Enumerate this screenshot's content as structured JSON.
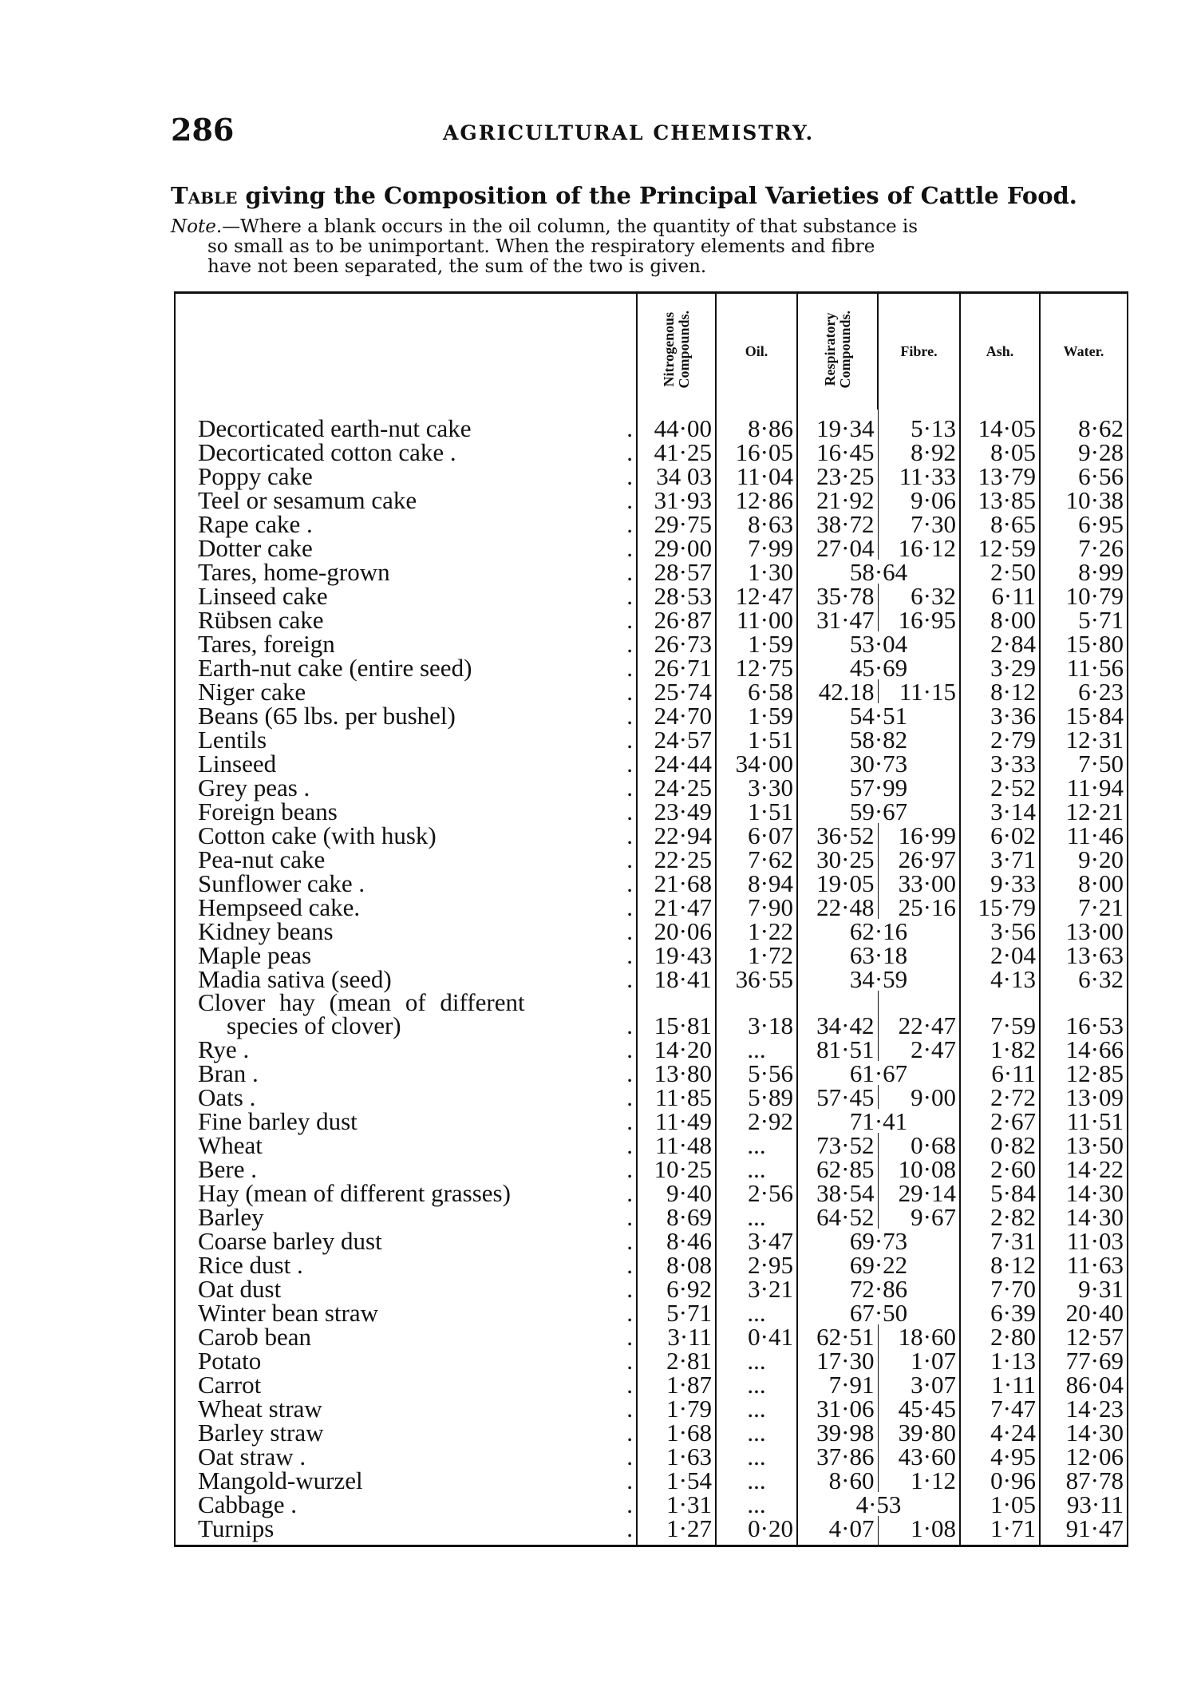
{
  "page_number": "286",
  "running_head": "AGRICULTURAL CHEMISTRY.",
  "title_lead": "Table",
  "title_rest": " giving the Composition of the Principal Varieties of Cattle Food.",
  "note_label": "Note.",
  "note_line1": "—Where a blank occurs in the oil column, the quantity of that substance is",
  "note_line2": "so small as to be unimportant.  When the respiratory elements and fibre",
  "note_line3": "have not been separated, the sum of the two is given.",
  "columns": [
    "Nitrogenous Compounds.",
    "Oil.",
    "Respiratory Compounds.",
    "Fibre.",
    "Ash.",
    "Water."
  ],
  "rows": [
    {
      "name": "Decorticated earth-nut cake",
      "v": [
        "44·00",
        "8·86",
        "19·34",
        "5·13",
        "14·05",
        "8·62"
      ]
    },
    {
      "name": "Decorticated cotton cake .",
      "v": [
        "41·25",
        "16·05",
        "16·45",
        "8·92",
        "8·05",
        "9·28"
      ]
    },
    {
      "name": "Poppy cake",
      "v": [
        "34 03",
        "11·04",
        "23·25",
        "11·33",
        "13·79",
        "6·56"
      ]
    },
    {
      "name": "Teel or sesamum cake",
      "v": [
        "31·93",
        "12·86",
        "21·92",
        "9·06",
        "13·85",
        "10·38"
      ]
    },
    {
      "name": "Rape cake .",
      "v": [
        "29·75",
        "8·63",
        "38·72",
        "7·30",
        "8·65",
        "6·95"
      ]
    },
    {
      "name": "Dotter cake",
      "v": [
        "29·00",
        "7·99",
        "27·04",
        "16·12",
        "12·59",
        "7·26"
      ]
    },
    {
      "name": "Tares, home-grown",
      "v": [
        "28·57",
        "1·30",
        "58·64",
        null,
        "2·50",
        "8·99"
      ]
    },
    {
      "name": "Linseed cake",
      "v": [
        "28·53",
        "12·47",
        "35·78",
        "6·32",
        "6·11",
        "10·79"
      ]
    },
    {
      "name": "Rübsen cake",
      "v": [
        "26·87",
        "11·00",
        "31·47",
        "16·95",
        "8·00",
        "5·71"
      ]
    },
    {
      "name": "Tares, foreign",
      "v": [
        "26·73",
        "1·59",
        "53·04",
        null,
        "2·84",
        "15·80"
      ]
    },
    {
      "name": "Earth-nut cake (entire seed)",
      "v": [
        "26·71",
        "12·75",
        "45·69",
        null,
        "3·29",
        "11·56"
      ]
    },
    {
      "name": "Niger cake",
      "v": [
        "25·74",
        "6·58",
        "42.18",
        "11·15",
        "8·12",
        "6·23"
      ]
    },
    {
      "name": "Beans (65 lbs. per bushel)",
      "v": [
        "24·70",
        "1·59",
        "54·51",
        null,
        "3·36",
        "15·84"
      ]
    },
    {
      "name": "Lentils",
      "v": [
        "24·57",
        "1·51",
        "58·82",
        null,
        "2·79",
        "12·31"
      ]
    },
    {
      "name": "Linseed",
      "v": [
        "24·44",
        "34·00",
        "30·73",
        null,
        "3·33",
        "7·50"
      ]
    },
    {
      "name": "Grey peas .",
      "v": [
        "24·25",
        "3·30",
        "57·99",
        null,
        "2·52",
        "11·94"
      ]
    },
    {
      "name": "Foreign beans",
      "v": [
        "23·49",
        "1·51",
        "59·67",
        null,
        "3·14",
        "12·21"
      ]
    },
    {
      "name": "Cotton cake (with husk)",
      "v": [
        "22·94",
        "6·07",
        "36·52",
        "16·99",
        "6·02",
        "11·46"
      ]
    },
    {
      "name": "Pea-nut cake",
      "v": [
        "22·25",
        "7·62",
        "30·25",
        "26·97",
        "3·71",
        "9·20"
      ]
    },
    {
      "name": "Sunflower cake .",
      "v": [
        "21·68",
        "8·94",
        "19·05",
        "33·00",
        "9·33",
        "8·00"
      ]
    },
    {
      "name": "Hempseed cake.",
      "v": [
        "21·47",
        "7·90",
        "22·48",
        "25·16",
        "15·79",
        "7·21"
      ]
    },
    {
      "name": "Kidney beans",
      "v": [
        "20·06",
        "1·22",
        "62·16",
        null,
        "3·56",
        "13·00"
      ]
    },
    {
      "name": "Maple peas",
      "v": [
        "19·43",
        "1·72",
        "63·18",
        null,
        "2·04",
        "13·63"
      ]
    },
    {
      "name": "Madia sativa (seed)",
      "v": [
        "18·41",
        "36·55",
        "34·59",
        null,
        "4·13",
        "6·32"
      ]
    },
    {
      "name": "Clover  hay  (mean  of  different",
      "name2": "species of clover)",
      "v": [
        "15·81",
        "3·18",
        "34·42",
        "22·47",
        "7·59",
        "16·53"
      ]
    },
    {
      "name": "Rye .",
      "v": [
        "14·20",
        "...",
        "81·51",
        "2·47",
        "1·82",
        "14·66"
      ]
    },
    {
      "name": "Bran .",
      "v": [
        "13·80",
        "5·56",
        "61·67",
        null,
        "6·11",
        "12·85"
      ]
    },
    {
      "name": "Oats .",
      "v": [
        "11·85",
        "5·89",
        "57·45",
        "9·00",
        "2·72",
        "13·09"
      ]
    },
    {
      "name": "Fine barley dust",
      "v": [
        "11·49",
        "2·92",
        "71·41",
        null,
        "2·67",
        "11·51"
      ]
    },
    {
      "name": "Wheat",
      "v": [
        "11·48",
        "...",
        "73·52",
        "0·68",
        "0·82",
        "13·50"
      ]
    },
    {
      "name": "Bere .",
      "v": [
        "10·25",
        "...",
        "62·85",
        "10·08",
        "2·60",
        "14·22"
      ]
    },
    {
      "name": "Hay (mean of different grasses)",
      "v": [
        "9·40",
        "2·56",
        "38·54",
        "29·14",
        "5·84",
        "14·30"
      ]
    },
    {
      "name": "Barley",
      "v": [
        "8·69",
        "...",
        "64·52",
        "9·67",
        "2·82",
        "14·30"
      ]
    },
    {
      "name": "Coarse barley dust",
      "v": [
        "8·46",
        "3·47",
        "69·73",
        null,
        "7·31",
        "11·03"
      ]
    },
    {
      "name": "Rice dust .",
      "v": [
        "8·08",
        "2·95",
        "69·22",
        null,
        "8·12",
        "11·63"
      ]
    },
    {
      "name": "Oat dust",
      "v": [
        "6·92",
        "3·21",
        "72·86",
        null,
        "7·70",
        "9·31"
      ]
    },
    {
      "name": "Winter bean straw",
      "v": [
        "5·71",
        "...",
        "67·50",
        null,
        "6·39",
        "20·40"
      ]
    },
    {
      "name": "Carob bean",
      "v": [
        "3·11",
        "0·41",
        "62·51",
        "18·60",
        "2·80",
        "12·57"
      ]
    },
    {
      "name": "Potato",
      "v": [
        "2·81",
        "...",
        "17·30",
        "1·07",
        "1·13",
        "77·69"
      ]
    },
    {
      "name": "Carrot",
      "v": [
        "1·87",
        "...",
        "7·91",
        "3·07",
        "1·11",
        "86·04"
      ]
    },
    {
      "name": "Wheat straw",
      "v": [
        "1·79",
        "...",
        "31·06",
        "45·45",
        "7·47",
        "14·23"
      ]
    },
    {
      "name": "Barley straw",
      "v": [
        "1·68",
        "...",
        "39·98",
        "39·80",
        "4·24",
        "14·30"
      ]
    },
    {
      "name": "Oat straw .",
      "v": [
        "1·63",
        "...",
        "37·86",
        "43·60",
        "4·95",
        "12·06"
      ]
    },
    {
      "name": "Mangold-wurzel",
      "v": [
        "1·54",
        "...",
        "8·60",
        "1·12",
        "0·96",
        "87·78"
      ]
    },
    {
      "name": "Cabbage .",
      "v": [
        "1·31",
        "...",
        "4·53",
        null,
        "1·05",
        "93·11"
      ]
    },
    {
      "name": "Turnips",
      "v": [
        "1·27",
        "0·20",
        "4·07",
        "1·08",
        "1·71",
        "91·47"
      ]
    }
  ]
}
